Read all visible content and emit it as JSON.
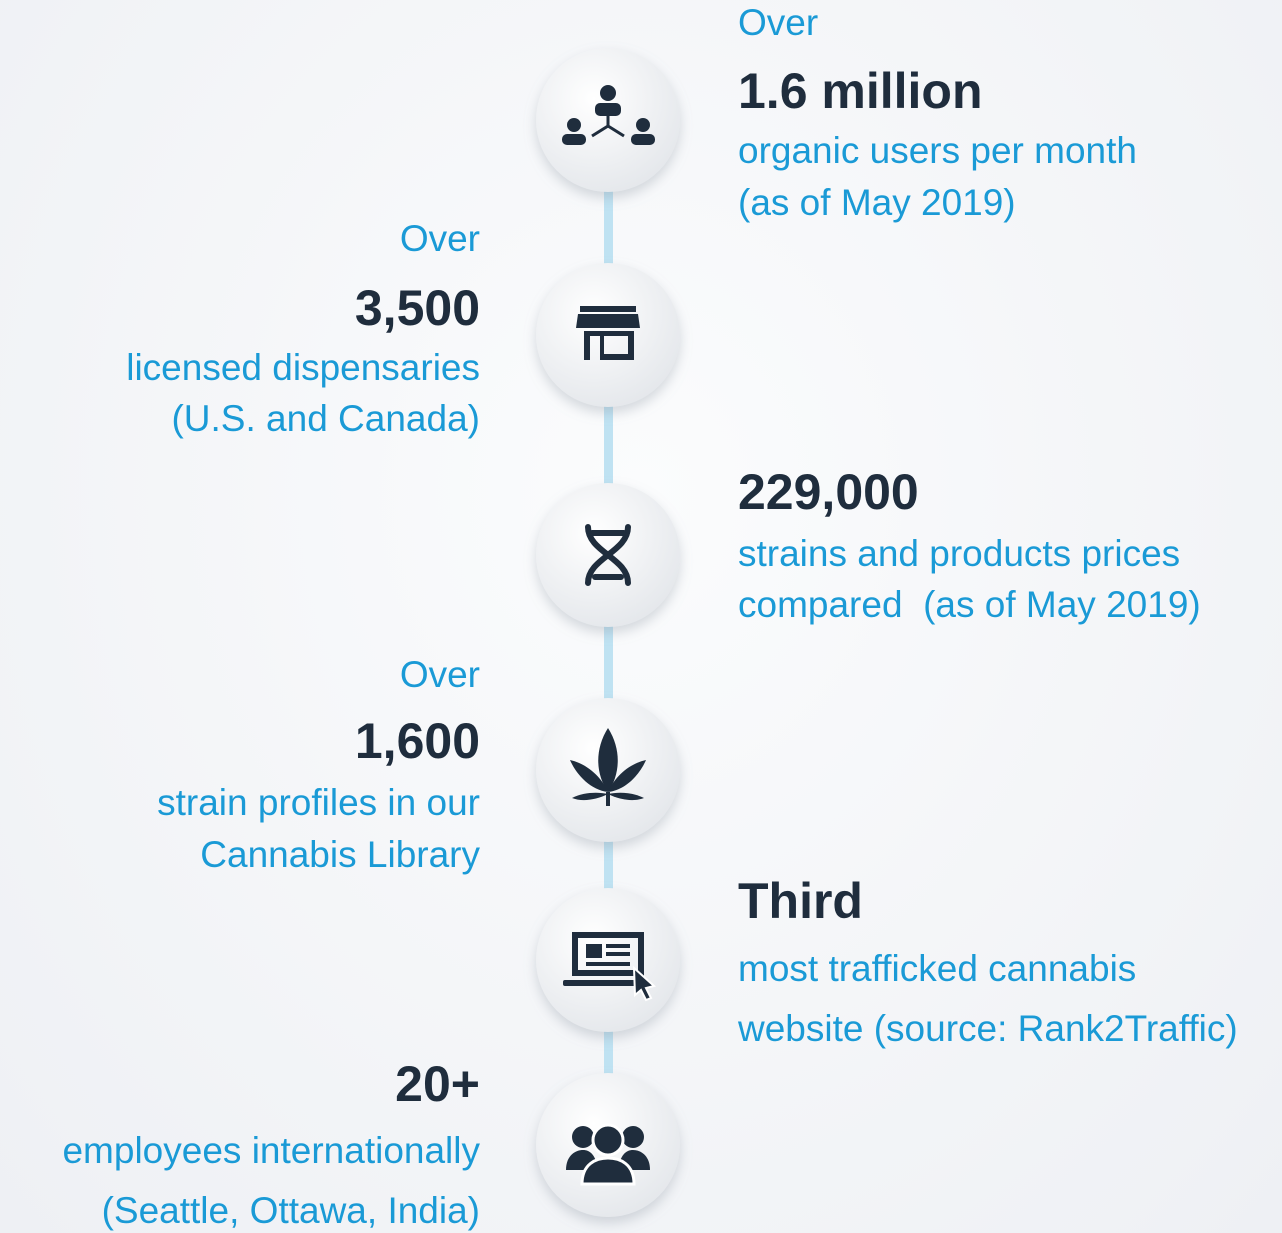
{
  "items": [
    {
      "pre": "Over",
      "headline": "1.6 million",
      "lines": [
        "organic users per month",
        "(as of May 2019)"
      ]
    },
    {
      "pre": "Over",
      "headline": "3,500",
      "lines": [
        "licensed dispensaries",
        "(U.S. and Canada)"
      ]
    },
    {
      "headline": "229,000",
      "lines": [
        "strains and products prices",
        "compared  (as of May 2019)"
      ]
    },
    {
      "pre": "Over",
      "headline": "1,600",
      "lines": [
        "strain profiles in our",
        "Cannabis Library"
      ]
    },
    {
      "headline": "Third",
      "lines": [
        "most trafficked cannabis",
        "website (source: Rank2Traffic)"
      ]
    },
    {
      "headline": "20+",
      "lines": [
        "employees internationally",
        "(Seattle, Ottawa, India)"
      ]
    }
  ]
}
